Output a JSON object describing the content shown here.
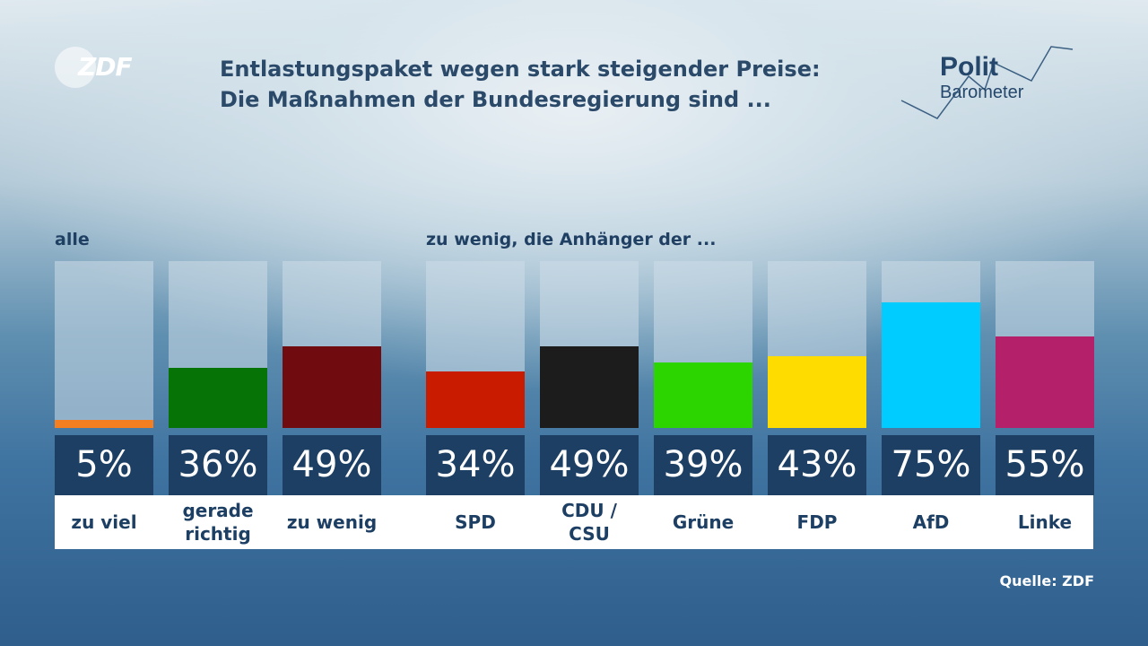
{
  "logos": {
    "zdf": "ZDF",
    "politbarometer_line1": "Polit",
    "politbarometer_line2": "Barometer"
  },
  "title": {
    "line1": "Entlastungspaket wegen stark steigender Preise:",
    "line2": "Die Maßnahmen der Bundesregierung sind ..."
  },
  "sections": {
    "alle": "alle",
    "parties": "zu wenig, die Anhänger der ..."
  },
  "source": "Quelle: ZDF",
  "chart_data": {
    "type": "bar",
    "title": "Entlastungspaket wegen stark steigender Preise: Die Maßnahmen der Bundesregierung sind ...",
    "ylim": [
      0,
      100
    ],
    "unit": "%",
    "groups": [
      {
        "name": "alle",
        "categories": [
          "zu viel",
          "gerade richtig",
          "zu wenig"
        ],
        "values": [
          5,
          36,
          49
        ],
        "colors": [
          "#f47f20",
          "#057305",
          "#700c0f"
        ]
      },
      {
        "name": "zu wenig, die Anhänger der ...",
        "categories": [
          "SPD",
          "CDU / CSU",
          "Grüne",
          "FDP",
          "AfD",
          "Linke"
        ],
        "values": [
          34,
          49,
          39,
          43,
          75,
          55
        ],
        "colors": [
          "#c91b00",
          "#1c1c1c",
          "#2cd400",
          "#ffdc00",
          "#00ccff",
          "#b5206a"
        ]
      }
    ]
  },
  "labels": {
    "value_texts": [
      "5%",
      "36%",
      "49%",
      "34%",
      "49%",
      "39%",
      "43%",
      "75%",
      "55%"
    ],
    "category_texts": [
      "zu viel",
      "gerade\nrichtig",
      "zu wenig",
      "SPD",
      "CDU /\nCSU",
      "Grüne",
      "FDP",
      "AfD",
      "Linke"
    ]
  }
}
